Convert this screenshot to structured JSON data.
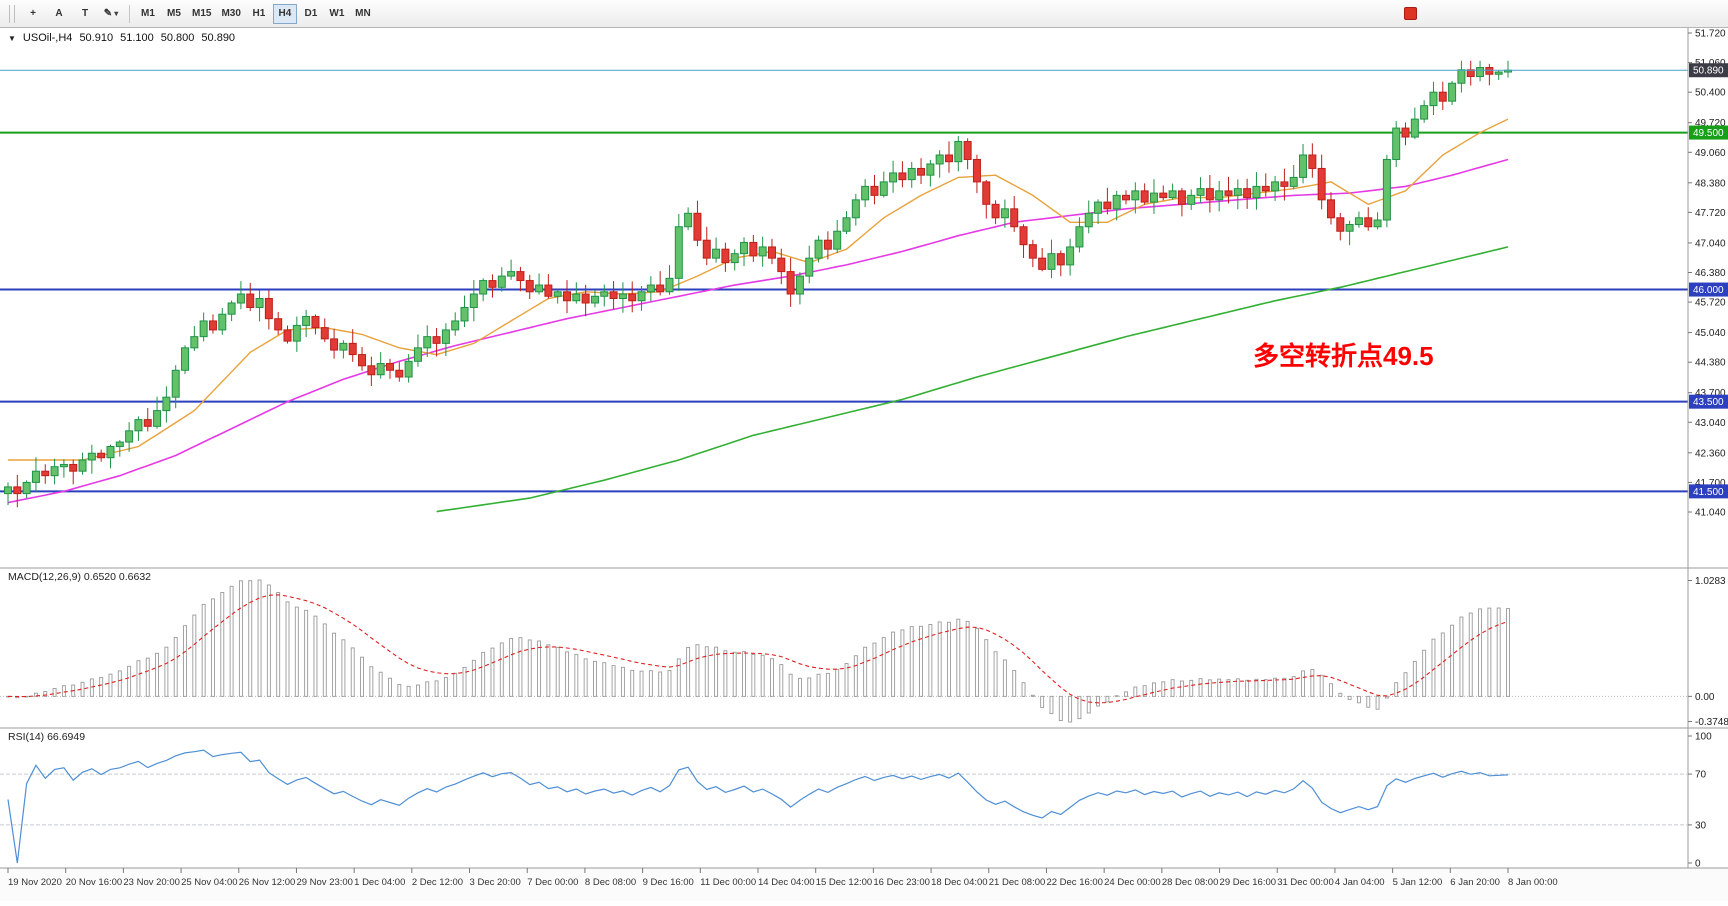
{
  "toolbar": {
    "tools": [
      {
        "name": "crosshair-icon",
        "glyph": "+"
      },
      {
        "name": "text-tool-button",
        "glyph": "A"
      },
      {
        "name": "text-label-button",
        "glyph": "T"
      },
      {
        "name": "draw-tools-dropdown",
        "glyph": "✎",
        "caret": "▾"
      }
    ],
    "timeframes": [
      {
        "label": "M1",
        "active": false
      },
      {
        "label": "M5",
        "active": false
      },
      {
        "label": "M15",
        "active": false
      },
      {
        "label": "M30",
        "active": false
      },
      {
        "label": "H1",
        "active": false
      },
      {
        "label": "H4",
        "active": true
      },
      {
        "label": "D1",
        "active": false
      },
      {
        "label": "W1",
        "active": false
      },
      {
        "label": "MN",
        "active": false
      }
    ]
  },
  "chart_header": {
    "collapse_icon": "▼",
    "symbol_period": "USOil-,H4",
    "open": "50.910",
    "high": "51.100",
    "low": "50.800",
    "close": "50.890"
  },
  "annotation": {
    "text": "多空转折点49.5",
    "color": "#ff0000"
  },
  "price_axis": {
    "ticks": [
      "51.720",
      "51.060",
      "50.400",
      "49.720",
      "49.060",
      "48.380",
      "47.720",
      "47.040",
      "46.380",
      "45.720",
      "45.040",
      "44.380",
      "43.700",
      "43.040",
      "42.360",
      "41.700",
      "41.040"
    ]
  },
  "current_price": {
    "value": 50.89,
    "label": "50.890",
    "line_color": "#4aa0c8",
    "badge_color": "#3c3c46"
  },
  "hlines": [
    {
      "price": 49.5,
      "label": "49.500",
      "color": "#17a017"
    },
    {
      "price": 46.0,
      "label": "46.000",
      "color": "#2c3fbe"
    },
    {
      "price": 43.5,
      "label": "43.500",
      "color": "#2c3fbe"
    },
    {
      "price": 41.5,
      "label": "41.500",
      "color": "#2c3fbe"
    }
  ],
  "indicators": {
    "macd": {
      "label": "MACD(12,26,9) 0.6520 0.6632",
      "fast": 12,
      "slow": 26,
      "signal": 9,
      "axis_top": "1.0283",
      "axis_zero": "0.00",
      "axis_bottom": "-0.3748",
      "hist_color": "#9a9a9a",
      "signal_color": "#e02020"
    },
    "rsi": {
      "label": "RSI(14) 66.6949",
      "period": 14,
      "levels": [
        70,
        30
      ],
      "axis": [
        "100",
        "70",
        "30",
        "0"
      ],
      "line_color": "#4f8fd4",
      "level_color": "#c5cad2"
    }
  },
  "time_axis": {
    "labels": [
      "19 Nov 2020",
      "20 Nov 16:00",
      "23 Nov 20:00",
      "25 Nov 04:00",
      "26 Nov 12:00",
      "29 Nov 23:00",
      "1 Dec 04:00",
      "2 Dec 12:00",
      "3 Dec 20:00",
      "7 Dec 00:00",
      "8 Dec 08:00",
      "9 Dec 16:00",
      "11 Dec 00:00",
      "14 Dec 04:00",
      "15 Dec 12:00",
      "16 Dec 23:00",
      "18 Dec 04:00",
      "21 Dec 08:00",
      "22 Dec 16:00",
      "24 Dec 00:00",
      "28 Dec 08:00",
      "29 Dec 16:00",
      "31 Dec 00:00",
      "4 Jan 04:00",
      "5 Jan 12:00",
      "6 Jan 20:00",
      "8 Jan 00:00"
    ]
  },
  "chart_data": {
    "type": "candlestick",
    "title": "USOil-,H4",
    "ylim": [
      41.04,
      51.72
    ],
    "candle_colors": {
      "up_fill": "#63c16a",
      "up_stroke": "#1f9246",
      "down_fill": "#e23b35",
      "down_stroke": "#bd1f1a"
    },
    "closes": [
      41.6,
      41.45,
      41.7,
      41.95,
      41.85,
      42.05,
      42.1,
      41.95,
      42.2,
      42.35,
      42.25,
      42.5,
      42.6,
      42.85,
      43.1,
      42.95,
      43.3,
      43.6,
      44.2,
      44.7,
      44.95,
      45.3,
      45.1,
      45.45,
      45.7,
      45.9,
      45.6,
      45.8,
      45.35,
      45.1,
      44.85,
      45.2,
      45.4,
      45.15,
      44.9,
      44.65,
      44.8,
      44.55,
      44.3,
      44.1,
      44.35,
      44.2,
      44.05,
      44.4,
      44.7,
      44.95,
      44.8,
      45.1,
      45.3,
      45.6,
      45.9,
      46.2,
      46.05,
      46.3,
      46.4,
      46.2,
      45.95,
      46.1,
      45.85,
      45.95,
      45.75,
      45.9,
      45.7,
      45.85,
      45.95,
      45.8,
      45.9,
      45.75,
      45.95,
      46.1,
      45.95,
      46.25,
      47.4,
      47.7,
      47.1,
      46.7,
      46.9,
      46.6,
      46.8,
      47.05,
      46.75,
      46.95,
      46.7,
      46.4,
      45.9,
      46.3,
      46.7,
      47.1,
      46.9,
      47.3,
      47.6,
      48.0,
      48.3,
      48.1,
      48.4,
      48.6,
      48.45,
      48.7,
      48.55,
      48.8,
      49.0,
      48.85,
      49.3,
      48.9,
      48.4,
      47.9,
      47.6,
      47.8,
      47.4,
      47.0,
      46.7,
      46.45,
      46.8,
      46.55,
      46.95,
      47.4,
      47.7,
      47.95,
      47.8,
      48.1,
      48.0,
      48.2,
      47.95,
      48.15,
      48.05,
      48.2,
      47.9,
      48.1,
      48.25,
      48.0,
      48.2,
      48.1,
      48.25,
      48.05,
      48.3,
      48.2,
      48.4,
      48.3,
      48.5,
      49.0,
      48.7,
      48.0,
      47.6,
      47.3,
      47.45,
      47.6,
      47.4,
      47.55,
      48.9,
      49.6,
      49.4,
      49.8,
      50.1,
      50.4,
      50.2,
      50.6,
      50.9,
      50.75,
      50.95,
      50.8,
      50.85,
      50.89
    ],
    "ma": {
      "orange": {
        "color": "#e8a23c",
        "anchors": [
          [
            0,
            42.2
          ],
          [
            8,
            42.2
          ],
          [
            14,
            42.5
          ],
          [
            20,
            43.3
          ],
          [
            26,
            44.6
          ],
          [
            30,
            45.1
          ],
          [
            34,
            45.15
          ],
          [
            38,
            45.0
          ],
          [
            42,
            44.7
          ],
          [
            46,
            44.55
          ],
          [
            50,
            44.8
          ],
          [
            54,
            45.3
          ],
          [
            58,
            45.8
          ],
          [
            62,
            45.95
          ],
          [
            66,
            45.9
          ],
          [
            70,
            45.95
          ],
          [
            74,
            46.3
          ],
          [
            78,
            46.7
          ],
          [
            82,
            46.85
          ],
          [
            86,
            46.6
          ],
          [
            90,
            46.9
          ],
          [
            94,
            47.6
          ],
          [
            98,
            48.1
          ],
          [
            102,
            48.5
          ],
          [
            106,
            48.55
          ],
          [
            110,
            48.1
          ],
          [
            114,
            47.5
          ],
          [
            118,
            47.5
          ],
          [
            122,
            47.9
          ],
          [
            126,
            48.05
          ],
          [
            130,
            48.05
          ],
          [
            134,
            48.15
          ],
          [
            138,
            48.25
          ],
          [
            142,
            48.4
          ],
          [
            146,
            47.9
          ],
          [
            150,
            48.2
          ],
          [
            154,
            49.0
          ],
          [
            158,
            49.5
          ],
          [
            161,
            49.8
          ]
        ]
      },
      "magenta": {
        "color": "#e53ae5",
        "anchors": [
          [
            0,
            41.25
          ],
          [
            6,
            41.5
          ],
          [
            12,
            41.85
          ],
          [
            18,
            42.3
          ],
          [
            24,
            42.9
          ],
          [
            30,
            43.5
          ],
          [
            36,
            44.0
          ],
          [
            42,
            44.4
          ],
          [
            48,
            44.75
          ],
          [
            54,
            45.05
          ],
          [
            60,
            45.35
          ],
          [
            66,
            45.6
          ],
          [
            72,
            45.85
          ],
          [
            78,
            46.1
          ],
          [
            84,
            46.3
          ],
          [
            90,
            46.55
          ],
          [
            96,
            46.85
          ],
          [
            102,
            47.2
          ],
          [
            108,
            47.5
          ],
          [
            114,
            47.65
          ],
          [
            120,
            47.8
          ],
          [
            126,
            47.9
          ],
          [
            132,
            48.0
          ],
          [
            138,
            48.1
          ],
          [
            144,
            48.15
          ],
          [
            150,
            48.3
          ],
          [
            155,
            48.55
          ],
          [
            161,
            48.9
          ]
        ]
      },
      "green": {
        "color": "#33b033",
        "anchors": [
          [
            46,
            41.05
          ],
          [
            56,
            41.35
          ],
          [
            64,
            41.75
          ],
          [
            72,
            42.2
          ],
          [
            80,
            42.75
          ],
          [
            88,
            43.15
          ],
          [
            96,
            43.55
          ],
          [
            104,
            44.05
          ],
          [
            112,
            44.5
          ],
          [
            120,
            44.95
          ],
          [
            128,
            45.35
          ],
          [
            136,
            45.75
          ],
          [
            143,
            46.05
          ],
          [
            150,
            46.4
          ],
          [
            156,
            46.7
          ],
          [
            161,
            46.95
          ]
        ]
      }
    }
  }
}
